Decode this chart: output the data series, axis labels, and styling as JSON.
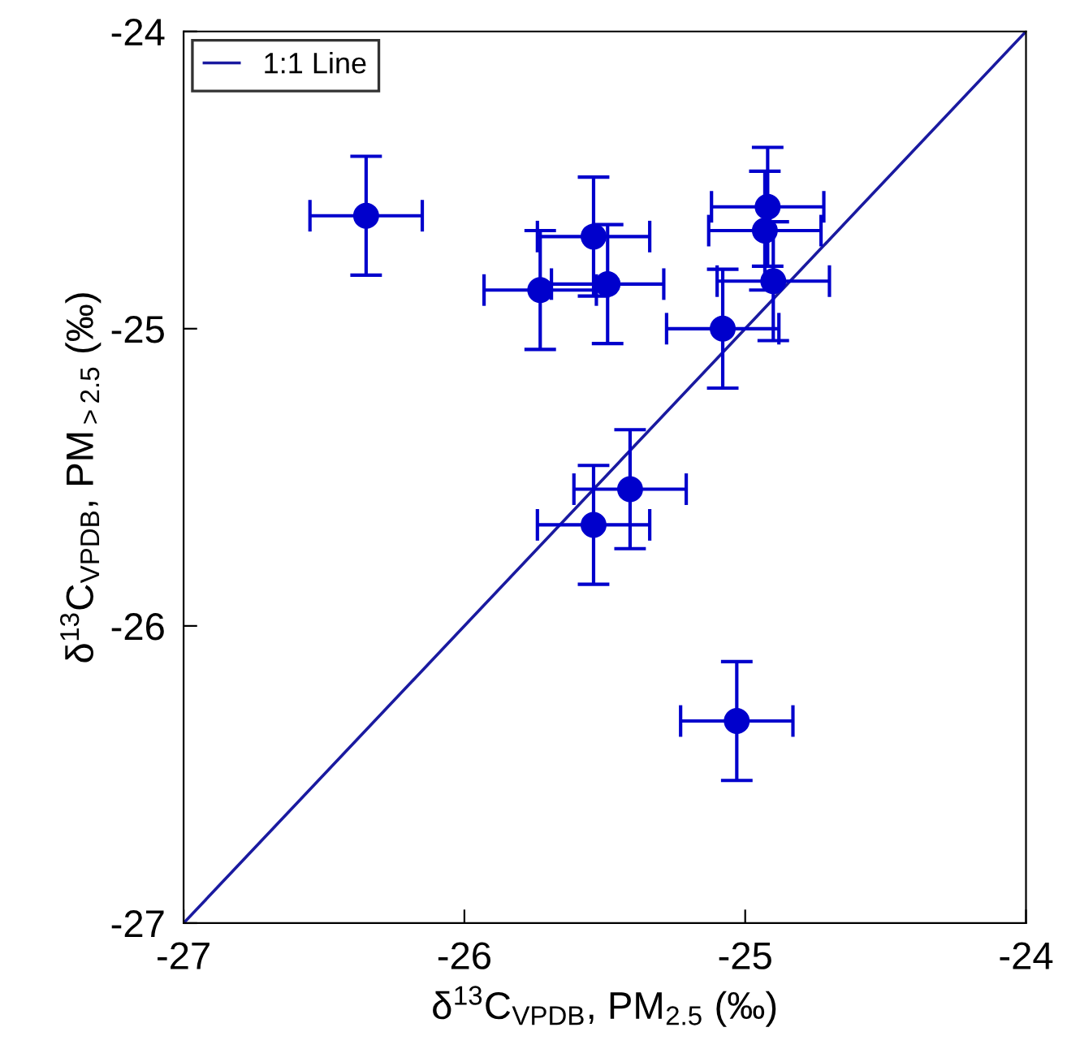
{
  "chart_data": {
    "type": "scatter",
    "xlabel": "δ$^{13}$C$_{VPDB}$, PM$_{2.5}$ (‰)",
    "ylabel": "δ$^{13}$C$_{VPDB}$, PM$_{>2.5}$ (‰)",
    "xlim": [
      -27,
      -24
    ],
    "ylim": [
      -27,
      -24
    ],
    "xticks": [
      -27,
      -26,
      -25,
      -24
    ],
    "yticks": [
      -27,
      -26,
      -25,
      -24
    ],
    "grid": false,
    "legend": "top left",
    "marker": "circle",
    "series": [
      {
        "color": "#0000cc",
        "x": [
          -26.35,
          -25.73,
          -25.54,
          -25.49,
          -25.08,
          -24.92,
          -24.93,
          -24.9,
          -25.41,
          -25.54,
          -25.03
        ],
        "values": [
          -24.62,
          -24.87,
          -24.69,
          -24.85,
          -25.0,
          -24.59,
          -24.67,
          -24.84,
          -25.54,
          -25.66,
          -26.32
        ],
        "errors": [
          0.2,
          0.2,
          0.2,
          0.2,
          0.2,
          0.2,
          0.2,
          0.2,
          0.2,
          0.2,
          0.2
        ],
        "xerrors": [
          0.2,
          0.2,
          0.2,
          0.2,
          0.2,
          0.2,
          0.2,
          0.2,
          0.2,
          0.2,
          0.2
        ]
      },
      {
        "type": "line",
        "name": "1:1 Line",
        "color": "#1a1aa0",
        "x": [
          -27,
          -24
        ],
        "values": [
          -27,
          -24
        ],
        "marker": "none",
        "line_style": "solid"
      }
    ]
  }
}
